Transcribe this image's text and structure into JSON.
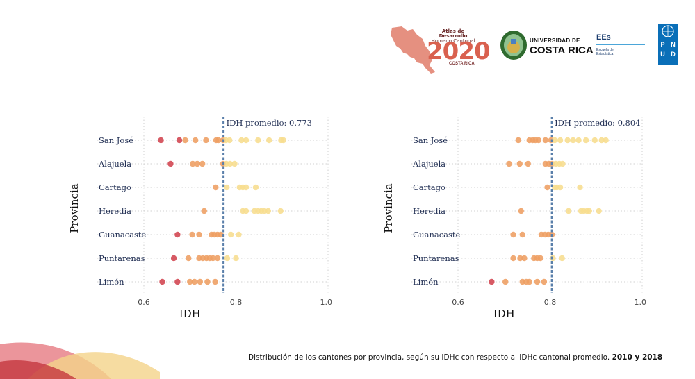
{
  "header": {
    "atlas_line1": "Atlas de Desarrollo",
    "atlas_line2": "Humano Cantonal",
    "atlas_year": "2020",
    "atlas_country": "COSTA RICA",
    "ucr_line1": "UNIVERSIDAD DE",
    "ucr_line2": "COSTA RICA",
    "ees_title": "EEs",
    "ees_sub1": "Escuela de",
    "ees_sub2": "Estadística",
    "pnud_letters": [
      "P",
      "N",
      "U",
      "D"
    ]
  },
  "caption": {
    "text": "Distribución de los cantones por provincia, según su IDHc con respecto al IDHc cantonal promedio.",
    "years": "2010 y 2018"
  },
  "colors": {
    "low": "#d1434f",
    "mid": "#ee9e62",
    "high": "#f7dd8e",
    "avg_line": "#5a7faa",
    "label": "#1f2d52"
  },
  "chart_data": [
    {
      "type": "scatter",
      "xlabel": "IDH",
      "ylabel": "Provincia",
      "xlim": [
        0.6,
        1.0
      ],
      "xticks": [
        "0.6",
        "0.8",
        "1.0"
      ],
      "grid": true,
      "average": 0.773,
      "average_label": "IDH promedio: 0.773",
      "categories": [
        "San José",
        "Alajuela",
        "Cartago",
        "Heredia",
        "Guanacaste",
        "Puntarenas",
        "Limón"
      ],
      "points": [
        [
          0.637,
          0.677,
          0.69,
          0.712,
          0.735,
          0.757,
          0.762,
          0.772,
          0.778,
          0.786,
          0.812,
          0.822,
          0.848,
          0.872,
          0.898,
          0.903
        ],
        [
          0.658,
          0.706,
          0.716,
          0.727,
          0.772,
          0.779,
          0.787,
          0.797
        ],
        [
          0.756,
          0.78,
          0.808,
          0.815,
          0.822,
          0.843
        ],
        [
          0.731,
          0.815,
          0.822,
          0.84,
          0.848,
          0.855,
          0.862,
          0.87,
          0.897
        ],
        [
          0.673,
          0.705,
          0.72,
          0.747,
          0.753,
          0.76,
          0.767,
          0.789,
          0.806
        ],
        [
          0.665,
          0.697,
          0.72,
          0.728,
          0.736,
          0.743,
          0.75,
          0.76,
          0.781,
          0.8
        ],
        [
          0.64,
          0.673,
          0.7,
          0.71,
          0.722,
          0.738,
          0.755
        ]
      ]
    },
    {
      "type": "scatter",
      "xlabel": "IDH",
      "ylabel": "Provincia",
      "xlim": [
        0.6,
        1.0
      ],
      "xticks": [
        "0.6",
        "0.8",
        "1.0"
      ],
      "grid": true,
      "average": 0.804,
      "average_label": "IDH promedio: 0.804",
      "categories": [
        "San José",
        "Alajuela",
        "Cartago",
        "Heredia",
        "Guanacaste",
        "Puntarenas",
        "Limón"
      ],
      "points": [
        [
          0.731,
          0.755,
          0.762,
          0.768,
          0.775,
          0.79,
          0.802,
          0.81,
          0.822,
          0.838,
          0.85,
          0.862,
          0.878,
          0.897,
          0.912,
          0.921
        ],
        [
          0.711,
          0.734,
          0.752,
          0.79,
          0.797,
          0.804,
          0.812,
          0.82,
          0.827
        ],
        [
          0.794,
          0.81,
          0.815,
          0.822,
          0.865
        ],
        [
          0.737,
          0.84,
          0.867,
          0.873,
          0.88,
          0.885,
          0.906
        ],
        [
          0.72,
          0.74,
          0.781,
          0.789,
          0.796,
          0.804
        ],
        [
          0.72,
          0.735,
          0.744,
          0.765,
          0.772,
          0.779,
          0.806,
          0.826
        ],
        [
          0.673,
          0.703,
          0.74,
          0.748,
          0.755,
          0.772,
          0.787
        ]
      ]
    }
  ]
}
